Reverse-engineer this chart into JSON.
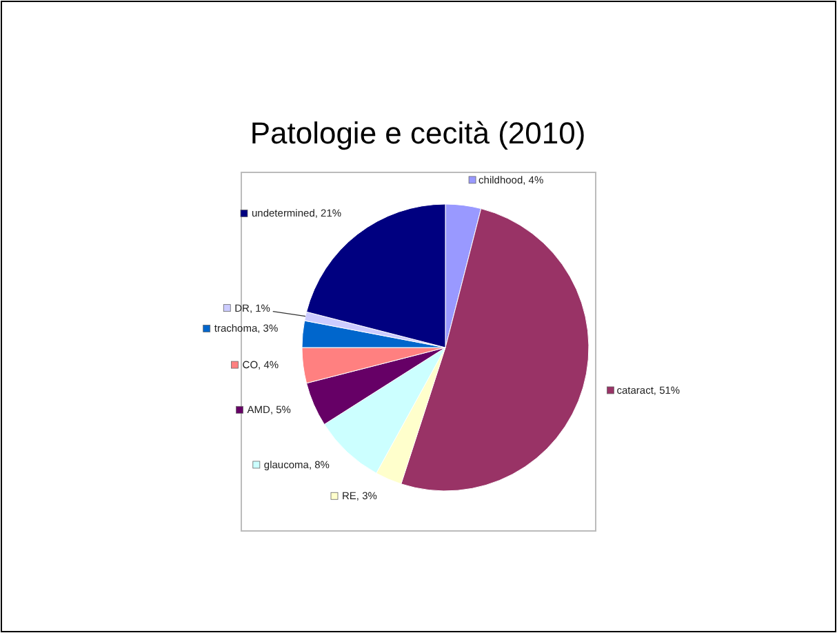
{
  "chart_data": {
    "type": "pie",
    "title": "Patologie e cecità (2010)",
    "categories": [
      "childhood",
      "cataract",
      "RE",
      "glaucoma",
      "AMD",
      "CO",
      "trachoma",
      "DR",
      "undetermined"
    ],
    "values": [
      4,
      51,
      3,
      8,
      5,
      4,
      3,
      1,
      21
    ],
    "value_labels": [
      "4%",
      "51%",
      "3%",
      "8%",
      "5%",
      "4%",
      "3%",
      "1%",
      "21%"
    ],
    "colors": [
      "#9999ff",
      "#993366",
      "#ffffcc",
      "#ccffff",
      "#660066",
      "#ff8080",
      "#0066cc",
      "#ccccff",
      "#000080"
    ],
    "legend": "left"
  }
}
